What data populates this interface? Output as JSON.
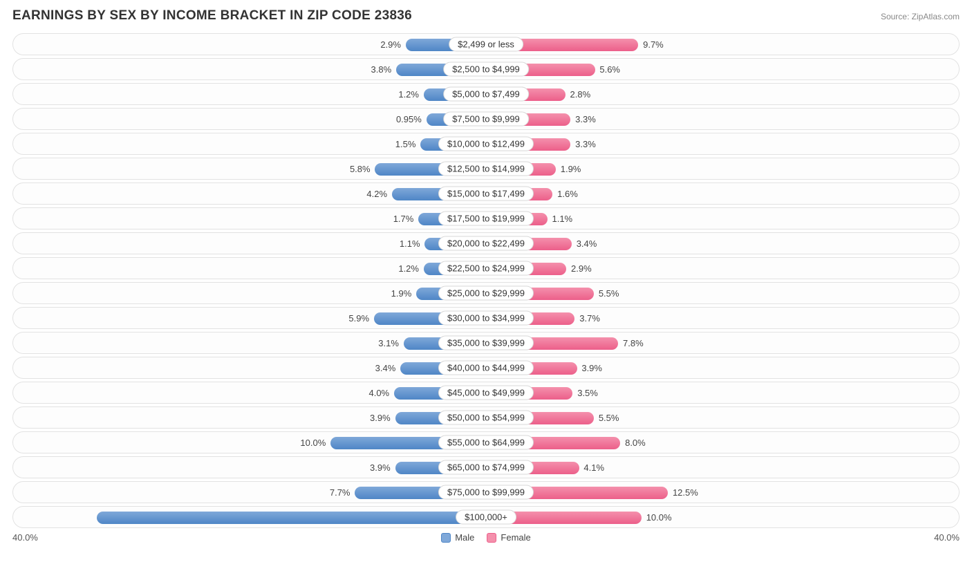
{
  "title": "EARNINGS BY SEX BY INCOME BRACKET IN ZIP CODE 23836",
  "source": "Source: ZipAtlas.com",
  "axis_max": 40.0,
  "axis_label_left": "40.0%",
  "axis_label_right": "40.0%",
  "colors": {
    "male_fill": "#7fa8d9",
    "male_stroke": "#4f86c6",
    "female_fill": "#f490ac",
    "female_stroke": "#ec5f8a",
    "row_border": "#e2e2e2",
    "text": "#444444",
    "background": "#ffffff"
  },
  "legend": {
    "male": "Male",
    "female": "Female"
  },
  "rows": [
    {
      "label": "$2,499 or less",
      "male": 2.9,
      "female": 9.7
    },
    {
      "label": "$2,500 to $4,999",
      "male": 3.8,
      "female": 5.6
    },
    {
      "label": "$5,000 to $7,499",
      "male": 1.2,
      "female": 2.8
    },
    {
      "label": "$7,500 to $9,999",
      "male": 0.95,
      "female": 3.3
    },
    {
      "label": "$10,000 to $12,499",
      "male": 1.5,
      "female": 3.3
    },
    {
      "label": "$12,500 to $14,999",
      "male": 5.8,
      "female": 1.9
    },
    {
      "label": "$15,000 to $17,499",
      "male": 4.2,
      "female": 1.6
    },
    {
      "label": "$17,500 to $19,999",
      "male": 1.7,
      "female": 1.1
    },
    {
      "label": "$20,000 to $22,499",
      "male": 1.1,
      "female": 3.4
    },
    {
      "label": "$22,500 to $24,999",
      "male": 1.2,
      "female": 2.9
    },
    {
      "label": "$25,000 to $29,999",
      "male": 1.9,
      "female": 5.5
    },
    {
      "label": "$30,000 to $34,999",
      "male": 5.9,
      "female": 3.7
    },
    {
      "label": "$35,000 to $39,999",
      "male": 3.1,
      "female": 7.8
    },
    {
      "label": "$40,000 to $44,999",
      "male": 3.4,
      "female": 3.9
    },
    {
      "label": "$45,000 to $49,999",
      "male": 4.0,
      "female": 3.5
    },
    {
      "label": "$50,000 to $54,999",
      "male": 3.9,
      "female": 5.5
    },
    {
      "label": "$55,000 to $64,999",
      "male": 10.0,
      "female": 8.0
    },
    {
      "label": "$65,000 to $74,999",
      "male": 3.9,
      "female": 4.1
    },
    {
      "label": "$75,000 to $99,999",
      "male": 7.7,
      "female": 12.5
    },
    {
      "label": "$100,000+",
      "male": 32.1,
      "female": 10.0
    }
  ],
  "label_offset_pct": 10.5,
  "bar_base_pct": 10.5,
  "inside_threshold": 25.0
}
